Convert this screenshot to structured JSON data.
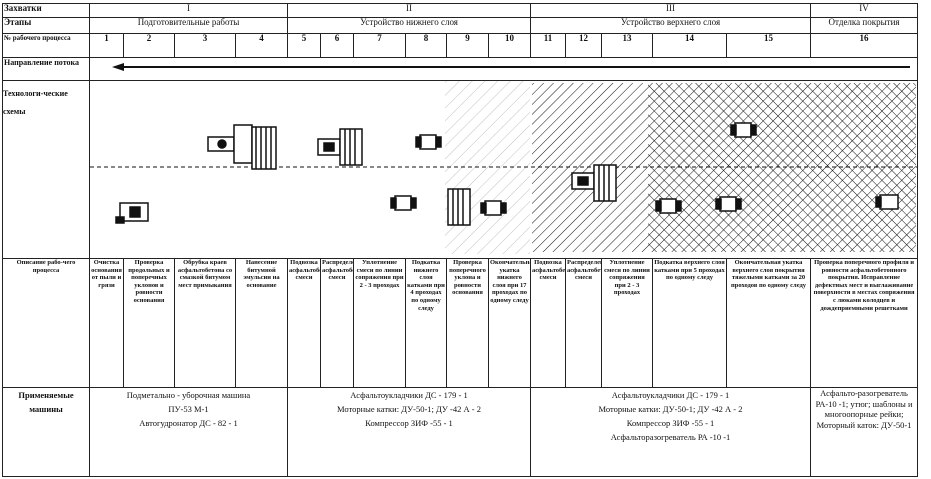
{
  "rows": {
    "grips_label": "Захватки",
    "stages_label": "Этапы",
    "process_no_label": "№ рабочего процесса",
    "flow_label": "Направление потока",
    "schemes_label": "Технологи-ческие схемы",
    "description_label": "Описание рабо-чего процесса",
    "machines_label": "Применяемые машины"
  },
  "grips": [
    "I",
    "II",
    "III",
    "IV"
  ],
  "stages": [
    "Подготовительные работы",
    "Устройство нижнего слоя",
    "Устройство верхнего слоя",
    "Отделка покрытия"
  ],
  "process_numbers": [
    "1",
    "2",
    "3",
    "4",
    "5",
    "6",
    "7",
    "8",
    "9",
    "10",
    "11",
    "12",
    "13",
    "14",
    "15",
    "16"
  ],
  "descriptions": [
    "Очистка основания от пыли и грязи",
    "Проверка продольных и поперечных уклонов и ровности основания",
    "Обрубка краев асфальтобетона со смазкой битумом мест примыкания",
    "Нанесение битумной эмульсии на основание",
    "Подвозка асфальтобетонной смеси",
    "Распределение асфальтобетонной смеси",
    "Уплотнение смеси по линии сопряжения при 2 - 3 проходах",
    "Подкатка нижнего слоя катками при 4 проходах по одному следу",
    "Проверка поперечного уклона и ровности основания",
    "Окончательная укатка нижнего слоя при 17 проходах по одному следу",
    "Подвозка асфальтобетонной смеси",
    "Распределение асфальтобетонной смеси",
    "Уплотнение смеси по линии сопряжения при 2 - 3 проходах",
    "Подкатка верхнего слоя катками при 5 проходах по одному следу",
    "Окончательная укатка верхнего слоя покрытия тяжелыми катками за 20 проходов по одному следу",
    "Проверка поперечного профиля и ровности асфальтобетонного покрытия. Исправление дефектных мест и выглаживание поверхности в местах сопряжения с люками колодцев и дождеприемными решетками"
  ],
  "machines": {
    "grip1": [
      "Подметально - уборочная машина",
      "ПУ-53 М-1",
      "Автогудронатор ДС - 82 - 1"
    ],
    "grip2": [
      "Асфальтоукладчики ДС - 179 - 1",
      "Моторные катки: ДУ-50-1; ДУ -42 А - 2",
      "Компрессор ЗИФ -55 - 1"
    ],
    "grip3": [
      "Асфальтоукладчики ДС - 179 - 1",
      "Моторные катки: ДУ-50-1; ДУ -42 А - 2",
      "Компрессор ЗИФ -55 - 1",
      "Асфальторазогреватель РА -10 -1"
    ],
    "grip4": [
      "Асфальто-разогреватель РА-10 -1; утюг; шаблоны и многоопорные рейки;",
      "Моторный каток: ДУ-50-1"
    ]
  },
  "flow_direction": "left",
  "colors": {
    "ink": "#111111",
    "paper": "#ffffff"
  }
}
